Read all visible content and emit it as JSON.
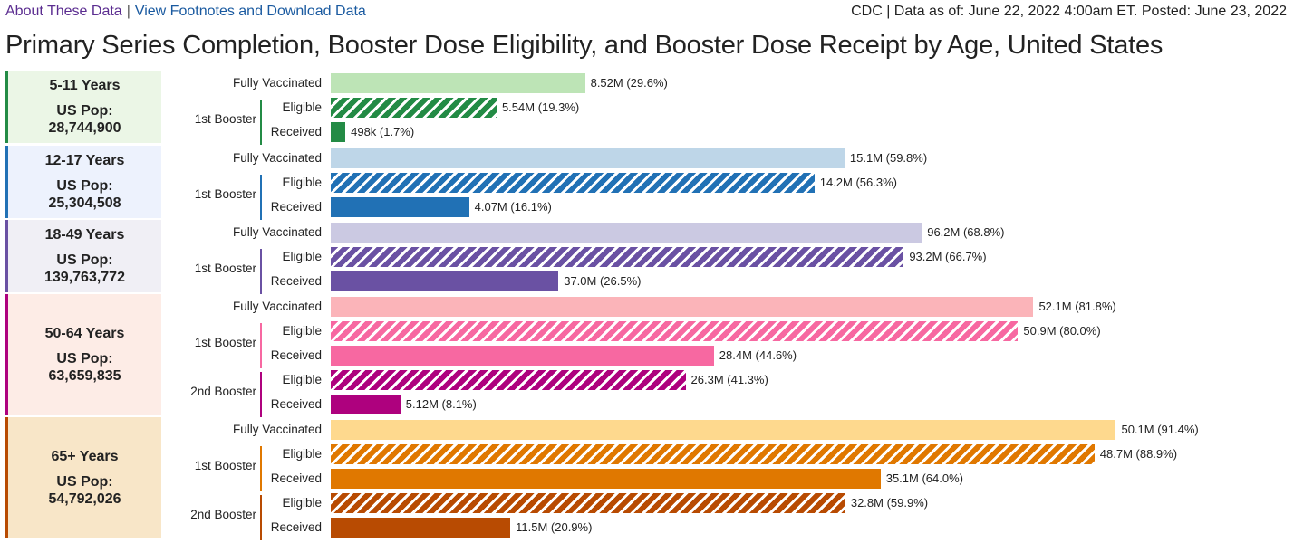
{
  "header": {
    "about": "About These Data",
    "separator": "|",
    "footnotes": "View Footnotes and Download Data",
    "source": "CDC | Data as of: June 22, 2022 4:00am ET. Posted: June 23, 2022"
  },
  "title": "Primary Series Completion, Booster Dose Eligibility, and Booster Dose Receipt by Age, United States",
  "labels": {
    "fully": "Fully Vaccinated",
    "b1": "1st Booster",
    "b2": "2nd Booster",
    "eligible": "Eligible",
    "received": "Received",
    "pop": "US Pop:"
  },
  "chart_data": {
    "type": "bar",
    "orientation": "horizontal",
    "xlim_percent": [
      0,
      100
    ],
    "groups": [
      {
        "age": "5-11 Years",
        "pop": "28,744,900",
        "panel_bg": "#ebf6e6",
        "accent": "#238b45",
        "fv_color": "#bde4b6",
        "rows": [
          {
            "kind": "fully",
            "value": "8.52M (29.6%)",
            "pct": 29.6
          },
          {
            "kind": "eligible",
            "booster": "b1",
            "value": "5.54M (19.3%)",
            "pct": 19.3,
            "color": "#238b45"
          },
          {
            "kind": "received",
            "booster": "b1",
            "value": "498k (1.7%)",
            "pct": 1.7,
            "color": "#238b45"
          }
        ]
      },
      {
        "age": "12-17 Years",
        "pop": "25,304,508",
        "panel_bg": "#edf2fd",
        "accent": "#2171b5",
        "fv_color": "#bed6e8",
        "rows": [
          {
            "kind": "fully",
            "value": "15.1M (59.8%)",
            "pct": 59.8
          },
          {
            "kind": "eligible",
            "booster": "b1",
            "value": "14.2M (56.3%)",
            "pct": 56.3,
            "color": "#2171b5"
          },
          {
            "kind": "received",
            "booster": "b1",
            "value": "4.07M (16.1%)",
            "pct": 16.1,
            "color": "#2171b5"
          }
        ]
      },
      {
        "age": "18-49 Years",
        "pop": "139,763,772",
        "panel_bg": "#f0eff5",
        "accent": "#6a51a3",
        "fv_color": "#cbc9e2",
        "rows": [
          {
            "kind": "fully",
            "value": "96.2M (68.8%)",
            "pct": 68.8
          },
          {
            "kind": "eligible",
            "booster": "b1",
            "value": "93.2M (66.7%)",
            "pct": 66.7,
            "color": "#6a51a3"
          },
          {
            "kind": "received",
            "booster": "b1",
            "value": "37.0M (26.5%)",
            "pct": 26.5,
            "color": "#6a51a3"
          }
        ]
      },
      {
        "age": "50-64 Years",
        "pop": "63,659,835",
        "panel_bg": "#fdece6",
        "accent": "#ae017e",
        "fv_color": "#fbb4b9",
        "rows": [
          {
            "kind": "fully",
            "value": "52.1M (81.8%)",
            "pct": 81.8
          },
          {
            "kind": "eligible",
            "booster": "b1",
            "value": "50.9M (80.0%)",
            "pct": 80.0,
            "color": "#f768a1"
          },
          {
            "kind": "received",
            "booster": "b1",
            "value": "28.4M (44.6%)",
            "pct": 44.6,
            "color": "#f768a1"
          },
          {
            "kind": "eligible",
            "booster": "b2",
            "value": "26.3M (41.3%)",
            "pct": 41.3,
            "color": "#ae017e"
          },
          {
            "kind": "received",
            "booster": "b2",
            "value": "5.12M (8.1%)",
            "pct": 8.1,
            "color": "#ae017e"
          }
        ]
      },
      {
        "age": "65+ Years",
        "pop": "54,792,026",
        "panel_bg": "#f8e6c8",
        "accent": "#b84b02",
        "fv_color": "#fed98e",
        "rows": [
          {
            "kind": "fully",
            "value": "50.1M (91.4%)",
            "pct": 91.4
          },
          {
            "kind": "eligible",
            "booster": "b1",
            "value": "48.7M (88.9%)",
            "pct": 88.9,
            "color": "#e07800"
          },
          {
            "kind": "received",
            "booster": "b1",
            "value": "35.1M (64.0%)",
            "pct": 64.0,
            "color": "#e07800"
          },
          {
            "kind": "eligible",
            "booster": "b2",
            "value": "32.8M (59.9%)",
            "pct": 59.9,
            "color": "#b84b02"
          },
          {
            "kind": "received",
            "booster": "b2",
            "value": "11.5M (20.9%)",
            "pct": 20.9,
            "color": "#b84b02"
          }
        ]
      }
    ]
  }
}
